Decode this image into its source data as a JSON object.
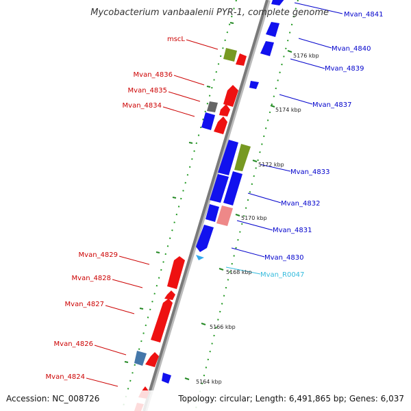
{
  "title": "Mycobacterium vanbaalenii PYR-1, complete genome",
  "accession": "Accession: NC_008726",
  "topology": "Topology: circular; Length: 6,491,865 bp; Genes: 6,037",
  "colors": {
    "forward_label": "#cc0000",
    "reverse_label": "#0000cc",
    "rna_label": "#33bbdd",
    "gene_red": "#ee1111",
    "gene_blue": "#1111ee",
    "gene_olive": "#779922",
    "gene_grey": "#666666",
    "gene_pink": "#ee8888",
    "gene_steel": "#4477aa",
    "gene_cyan": "#33aaee",
    "axis": "#888888",
    "tick": "#228822"
  },
  "ticks": [
    {
      "label": "5176 kbp"
    },
    {
      "label": "5174 kbp"
    },
    {
      "label": "5172 kbp"
    },
    {
      "label": "5170 kbp"
    },
    {
      "label": "5168 kbp"
    },
    {
      "label": "5166 kbp"
    },
    {
      "label": "5164 kbp"
    }
  ],
  "labels": [
    {
      "text": "Mvan_4841",
      "strand": "reverse"
    },
    {
      "text": "Mvan_4840",
      "strand": "reverse"
    },
    {
      "text": "Mvan_4839",
      "strand": "reverse"
    },
    {
      "text": "Mvan_4837",
      "strand": "reverse"
    },
    {
      "text": "Mvan_4833",
      "strand": "reverse"
    },
    {
      "text": "Mvan_4832",
      "strand": "reverse"
    },
    {
      "text": "Mvan_4831",
      "strand": "reverse"
    },
    {
      "text": "Mvan_4830",
      "strand": "reverse"
    },
    {
      "text": "Mvan_R0047",
      "strand": "rna"
    },
    {
      "text": "mscL",
      "strand": "forward"
    },
    {
      "text": "Mvan_4836",
      "strand": "forward"
    },
    {
      "text": "Mvan_4835",
      "strand": "forward"
    },
    {
      "text": "Mvan_4834",
      "strand": "forward"
    },
    {
      "text": "Mvan_4829",
      "strand": "forward"
    },
    {
      "text": "Mvan_4828",
      "strand": "forward"
    },
    {
      "text": "Mvan_4827",
      "strand": "forward"
    },
    {
      "text": "Mvan_4826",
      "strand": "forward"
    },
    {
      "text": "Mvan_4824",
      "strand": "forward"
    }
  ]
}
